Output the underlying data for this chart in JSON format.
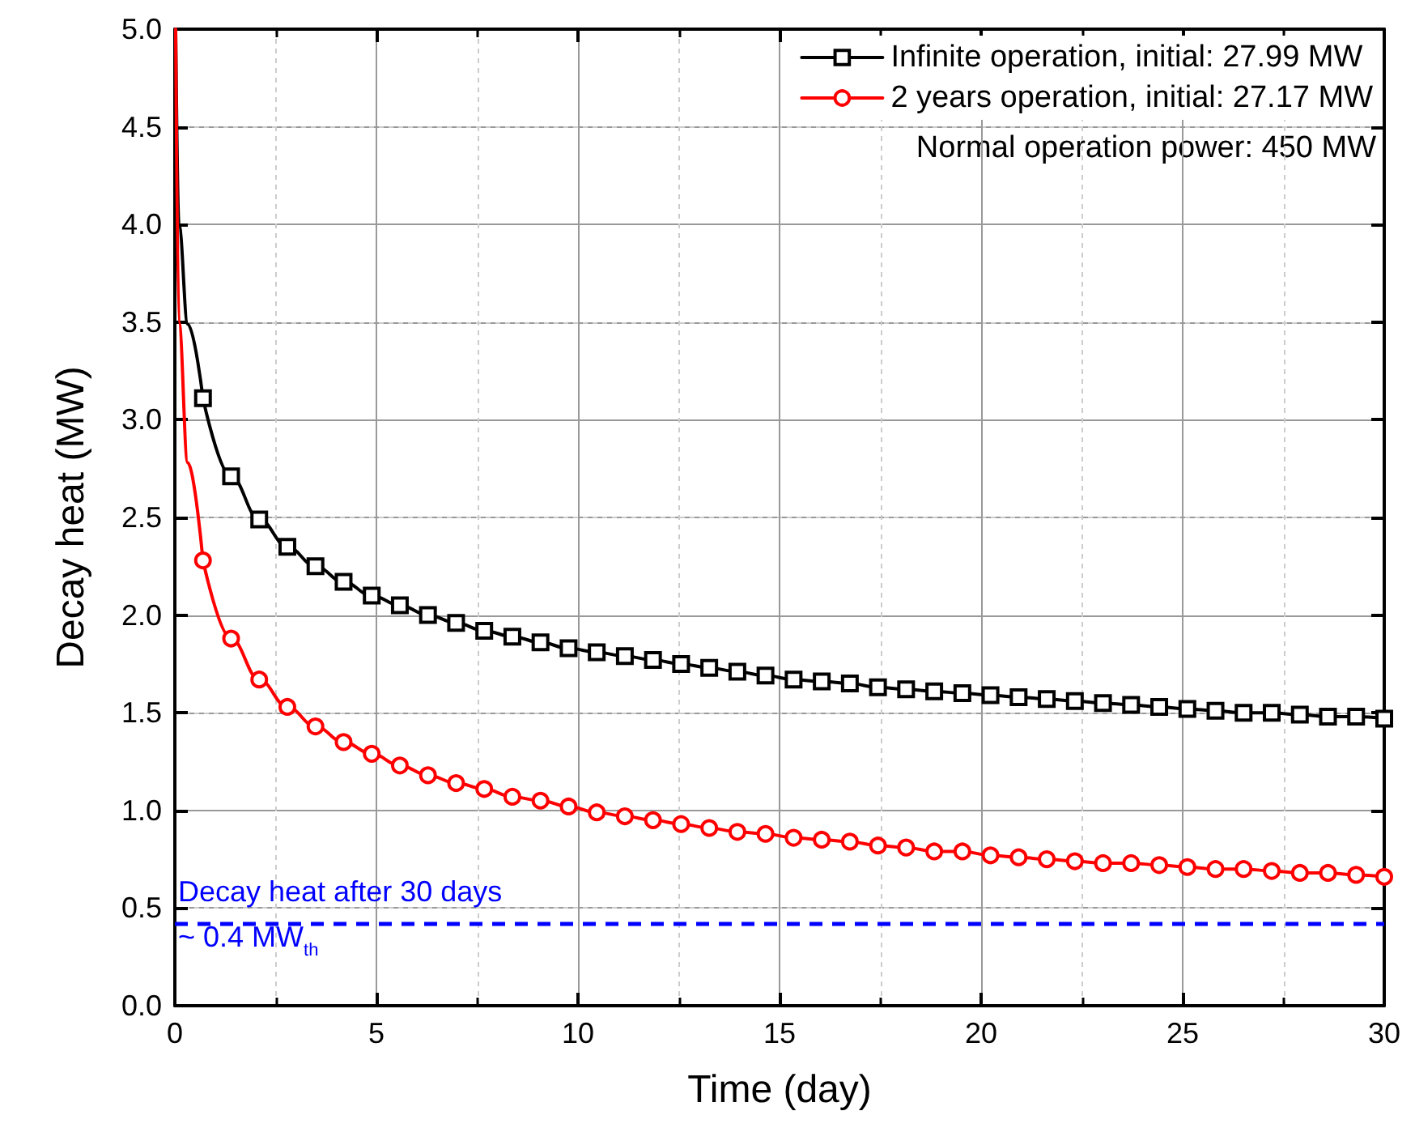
{
  "chart_data": {
    "type": "line",
    "xlabel": "Time (day)",
    "ylabel": "Decay heat (MW)",
    "xlim": [
      0,
      30
    ],
    "xticks": [
      0,
      5,
      10,
      15,
      20,
      25,
      30
    ],
    "ylim": [
      0,
      5
    ],
    "yticks": [
      {
        "value": 0,
        "label": "0.0"
      },
      0.5,
      {
        "value": 1,
        "label": "1.0"
      },
      1.5,
      {
        "value": 2,
        "label": "2.0"
      },
      2.5,
      {
        "value": 3,
        "label": "3.0"
      },
      3.5,
      {
        "value": 4,
        "label": "4.0"
      },
      4.5,
      {
        "value": 5,
        "label": "5.0"
      }
    ],
    "grid": true,
    "legend": "top right",
    "line_style": "solid",
    "series": [
      {
        "name": "Infinite operation, initial: 27.99 MW",
        "color": "#000000",
        "marker": "square",
        "values": [
          3.11,
          2.71,
          2.49,
          2.35,
          2.25,
          2.17,
          2.1,
          2.05,
          2.0,
          1.96,
          1.92,
          1.89,
          1.86,
          1.83,
          1.81,
          1.79,
          1.77,
          1.75,
          1.73,
          1.71,
          1.69,
          1.67,
          1.66,
          1.65,
          1.63,
          1.62,
          1.61,
          1.6,
          1.59,
          1.58,
          1.57,
          1.56,
          1.55,
          1.54,
          1.53,
          1.52,
          1.51,
          1.5,
          1.5,
          1.49,
          1.48,
          1.48,
          1.47
        ]
      },
      {
        "name": "2 years operation, initial: 27.17 MW",
        "color": "#ff0000",
        "marker": "circle",
        "values": [
          2.28,
          1.88,
          1.67,
          1.53,
          1.43,
          1.35,
          1.29,
          1.23,
          1.18,
          1.14,
          1.11,
          1.07,
          1.05,
          1.02,
          0.99,
          0.97,
          0.95,
          0.93,
          0.91,
          0.89,
          0.88,
          0.86,
          0.85,
          0.84,
          0.82,
          0.81,
          0.79,
          0.79,
          0.77,
          0.76,
          0.75,
          0.74,
          0.73,
          0.73,
          0.72,
          0.71,
          0.7,
          0.7,
          0.69,
          0.68,
          0.68,
          0.67,
          0.66
        ]
      },
      {
        "color": "#000000",
        "marker": "none",
        "x": [
          0.02,
          0.1,
          0.32,
          0.6977
        ],
        "values": [
          5.0,
          4.0,
          3.49,
          3.11
        ]
      },
      {
        "color": "#ff0000",
        "marker": "none",
        "x": [
          0.02,
          0.1,
          0.32,
          0.6977
        ],
        "values": [
          5.0,
          3.5,
          2.78,
          2.28
        ]
      }
    ],
    "x": [
      0.6977,
      1.3953,
      2.093,
      2.7907,
      3.4884,
      4.186,
      4.8837,
      5.5814,
      6.2791,
      6.9767,
      7.6744,
      8.3721,
      9.0698,
      9.7674,
      10.4651,
      11.1628,
      11.8605,
      12.5581,
      13.2558,
      13.9535,
      14.6512,
      15.3488,
      16.0465,
      16.7442,
      17.4419,
      18.1395,
      18.8372,
      19.5349,
      20.2326,
      20.9302,
      21.6279,
      22.3256,
      23.0233,
      23.7209,
      24.4186,
      25.1163,
      25.814,
      26.5116,
      27.2093,
      27.907,
      28.6047,
      29.3023,
      30.0
    ],
    "ref_lines": [
      {
        "axis": "y",
        "value": 0.42,
        "color": "#0000ff",
        "line_style": "dashed",
        "label": "Decay heat after 30 days\n~ 0.4 MW$_{th}$"
      }
    ],
    "annotations": [
      "Normal operation power: 450 MW"
    ]
  }
}
